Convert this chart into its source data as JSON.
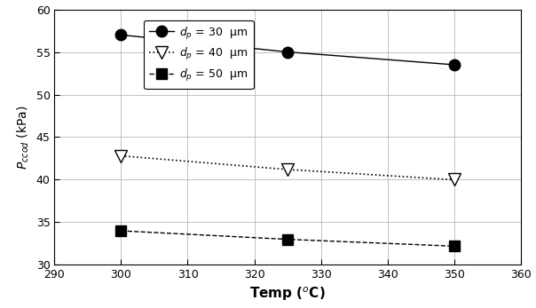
{
  "series": [
    {
      "label": "$d_p$ = 30  μm",
      "x": [
        300,
        325,
        350
      ],
      "y": [
        57.0,
        55.0,
        53.5
      ],
      "marker": "o",
      "markersize": 9,
      "color": "black",
      "linestyle": "-",
      "linewidth": 1.0,
      "markerfacecolor": "black"
    },
    {
      "label": "$d_p$ = 40  μm",
      "x": [
        300,
        325,
        350
      ],
      "y": [
        42.8,
        41.2,
        40.0
      ],
      "marker": "v",
      "markersize": 10,
      "color": "black",
      "linestyle": ":",
      "linewidth": 1.2,
      "markerfacecolor": "white"
    },
    {
      "label": "$d_p$ = 50  μm",
      "x": [
        300,
        325,
        350
      ],
      "y": [
        34.0,
        33.0,
        32.2
      ],
      "marker": "s",
      "markersize": 8,
      "color": "black",
      "linestyle": "--",
      "linewidth": 1.0,
      "markerfacecolor": "black"
    }
  ],
  "xlabel": "Temp ($^{o}$C)",
  "ylabel": "$P_{ccod}$ (kPa)",
  "xlim": [
    290,
    360
  ],
  "ylim": [
    30,
    60
  ],
  "xticks": [
    290,
    300,
    310,
    320,
    330,
    340,
    350,
    360
  ],
  "yticks": [
    30,
    35,
    40,
    45,
    50,
    55,
    60
  ],
  "figsize": [
    6.04,
    3.47
  ],
  "dpi": 100
}
